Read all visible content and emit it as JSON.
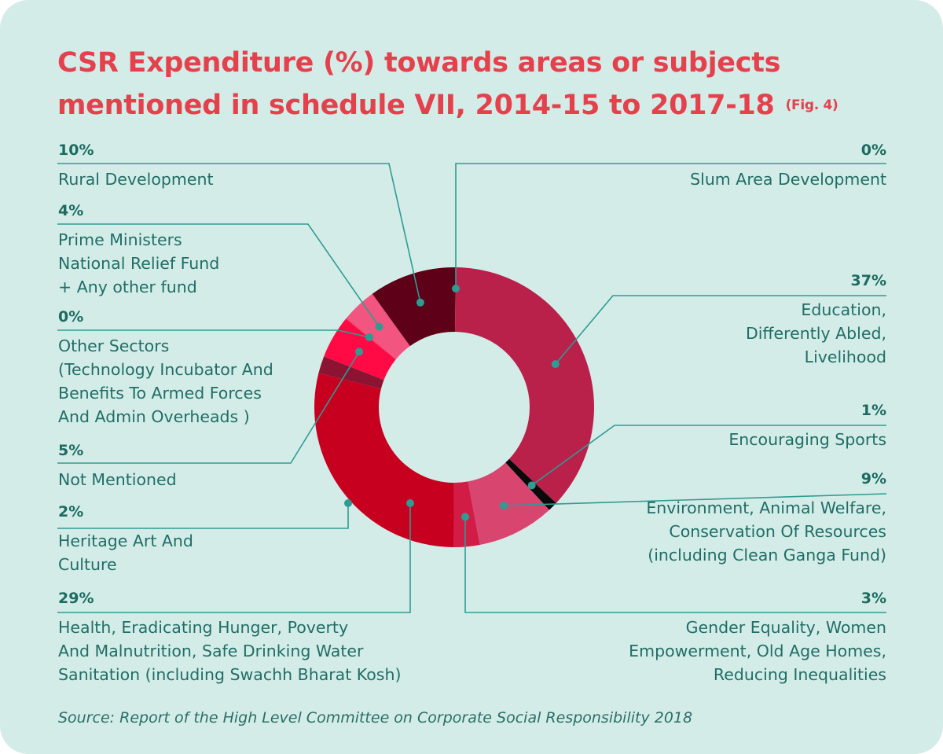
{
  "title_line1": "CSR Expenditure (%) towards areas or subjects",
  "title_line2": "mentioned in schedule VII, 2014-15 to 2017-18",
  "fig_label": "(Fig. 4)",
  "source": "Source: Report of the High Level Committee on Corporate Social Responsibility 2018",
  "chart_data": {
    "type": "pie",
    "variant": "donut",
    "unit": "%",
    "slices": [
      {
        "label": "Slum Area Development",
        "value": 0,
        "display": "0%",
        "color": "#5e0018"
      },
      {
        "label": "Education,\nDifferently Abled,\nLivelihood",
        "value": 37,
        "display": "37%",
        "color": "#b9204a"
      },
      {
        "label": "Encouraging Sports",
        "value": 1,
        "display": "1%",
        "color": "#0a0a0a"
      },
      {
        "label": "Environment, Animal Welfare,\nConservation Of Resources\n(including Clean Ganga Fund)",
        "value": 9,
        "display": "9%",
        "color": "#d8456f"
      },
      {
        "label": "Gender Equality, Women\nEmpowerment, Old Age Homes,\nReducing Inequalities",
        "value": 3,
        "display": "3%",
        "color": "#d31c45"
      },
      {
        "label": "Health, Eradicating Hunger, Poverty\nAnd Malnutrition, Safe Drinking Water\nSanitation (including Swachh Bharat Kosh)",
        "value": 29,
        "display": "29%",
        "color": "#c8001f"
      },
      {
        "label": "Heritage Art And\nCulture",
        "value": 2,
        "display": "2%",
        "color": "#8c1331"
      },
      {
        "label": "Not Mentioned",
        "value": 5,
        "display": "5%",
        "color": "#ff0a45"
      },
      {
        "label": "Other Sectors\n(Technology Incubator And\nBenefits To Armed Forces\nAnd Admin Overheads )",
        "value": 0,
        "display": "0%",
        "color": "#f33f6c"
      },
      {
        "label": "Prime Ministers\nNational Relief Fund\n+ Any other fund",
        "value": 4,
        "display": "4%",
        "color": "#f2557f"
      },
      {
        "label": "Rural Development",
        "value": 10,
        "display": "10%",
        "color": "#5e0018"
      }
    ]
  }
}
